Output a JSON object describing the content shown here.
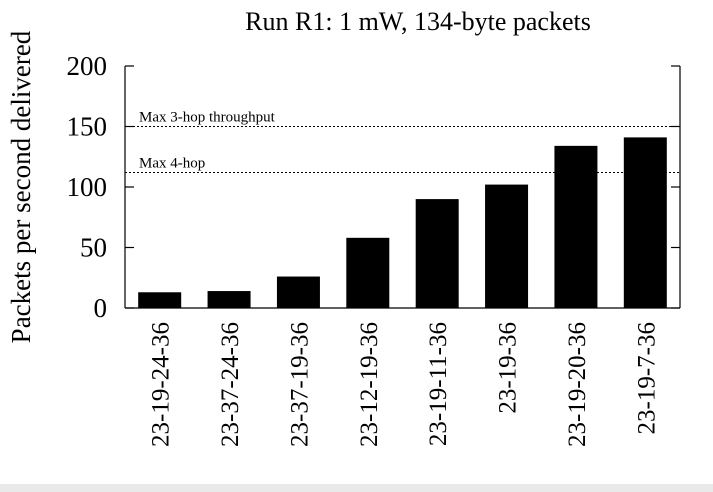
{
  "chart_data": {
    "type": "bar",
    "title": "Run R1: 1 mW, 134-byte packets",
    "xlabel": "",
    "ylabel": "Packets per second delivered",
    "ylim": [
      0,
      200
    ],
    "yticks": [
      0,
      50,
      100,
      150,
      200
    ],
    "grid": false,
    "categories": [
      "23-19-24-36",
      "23-37-24-36",
      "23-37-19-36",
      "23-12-19-36",
      "23-19-11-36",
      "23-19-36",
      "23-19-20-36",
      "23-19-7-36"
    ],
    "values": [
      13,
      14,
      26,
      58,
      90,
      102,
      134,
      141
    ],
    "bar_color": "#000000",
    "reference_lines": [
      {
        "label": "Max 3-hop throughput",
        "value": 150
      },
      {
        "label": "Max 4-hop",
        "value": 112
      }
    ]
  }
}
